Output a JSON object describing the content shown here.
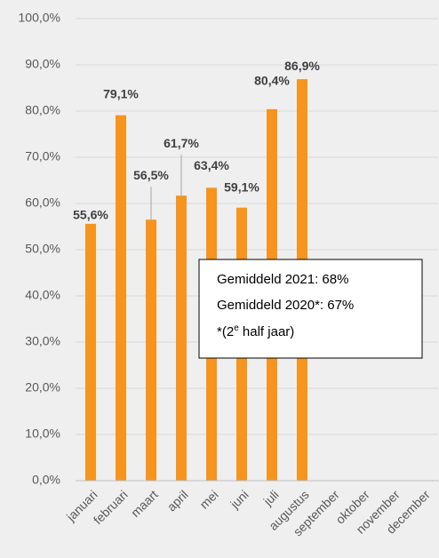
{
  "chart_data": {
    "type": "bar",
    "categories": [
      "januari",
      "februari",
      "maart",
      "april",
      "mei",
      "juni",
      "juli",
      "augustus",
      "september",
      "oktober",
      "november",
      "december"
    ],
    "values": [
      55.6,
      79.1,
      56.5,
      61.7,
      63.4,
      59.1,
      80.4,
      86.9,
      null,
      null,
      null,
      null
    ],
    "value_labels": [
      "55,6%",
      "79,1%",
      "56,5%",
      "61,7%",
      "63,4%",
      "59,1%",
      "80,4%",
      "86,9%",
      null,
      null,
      null,
      null
    ],
    "color": "#f7941d",
    "ylim": [
      0,
      100
    ],
    "yticks": [
      {
        "value": 0,
        "label": "0,0%"
      },
      {
        "value": 10,
        "label": "10,0%"
      },
      {
        "value": 20,
        "label": "20,0%"
      },
      {
        "value": 30,
        "label": "30,0%"
      },
      {
        "value": 40,
        "label": "40,0%"
      },
      {
        "value": 50,
        "label": "50,0%"
      },
      {
        "value": 60,
        "label": "60,0%"
      },
      {
        "value": 70,
        "label": "70,0%"
      },
      {
        "value": 80,
        "label": "80,0%"
      },
      {
        "value": 90,
        "label": "90,0%"
      },
      {
        "value": 100,
        "label": "100,0%"
      }
    ],
    "grid": true,
    "annotation": {
      "lines": [
        "Gemiddeld 2021: 68%",
        "Gemiddeld 2020*: 67%"
      ],
      "note": {
        "prefix": "*(2",
        "sup": "e",
        "suffix": " half jaar)"
      }
    }
  }
}
